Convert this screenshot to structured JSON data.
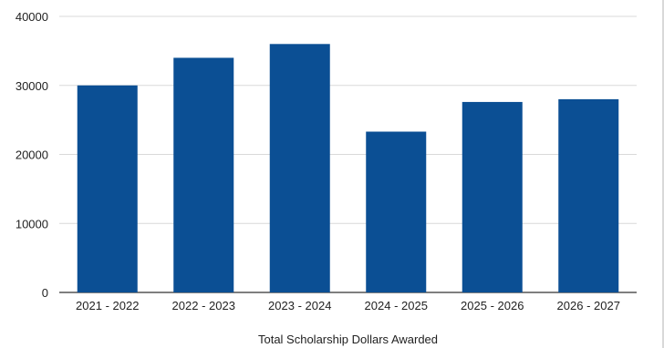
{
  "chart_data": {
    "type": "bar",
    "title": "",
    "xlabel": "Total Scholarship Dollars Awarded",
    "ylabel": "",
    "categories": [
      "2021 - 2022",
      "2022 - 2023",
      "2023 - 2024",
      "2024 - 2025",
      "2025 - 2026",
      "2026 - 2027"
    ],
    "series": [
      {
        "values": [
          30000,
          34000,
          36000,
          23300,
          27600,
          28000
        ]
      }
    ],
    "ylim": [
      0,
      40000
    ],
    "yticks": [
      "0",
      "10000",
      "20000",
      "30000",
      "40000"
    ],
    "grid": true,
    "legend": "none",
    "bar_color": "#0b4f94",
    "grid_color": "#d9d9d9"
  }
}
